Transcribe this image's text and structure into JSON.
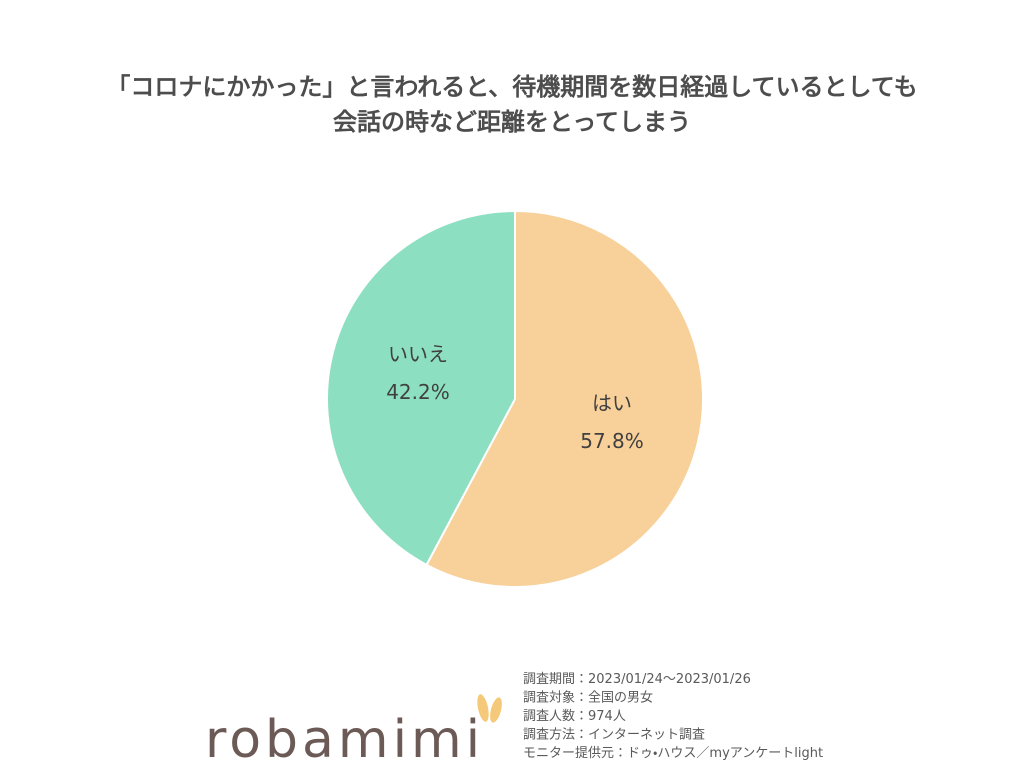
{
  "chart_data": {
    "type": "pie",
    "title": [
      "「コロナにかかった」と言われると、待機期間を数日経過しているとしても",
      "会話の時など距離をとってしまう"
    ],
    "categories": [
      "はい",
      "いいえ"
    ],
    "values": [
      57.8,
      42.2
    ],
    "value_labels": [
      "57.8%",
      "42.2%"
    ],
    "colors": [
      "#f8d09a",
      "#8ddfc2"
    ]
  },
  "footer": {
    "logo": "robamimi",
    "notes": [
      "調査期間：2023/01/24〜2023/01/26",
      "調査対象：全国の男女",
      "調査人数：974人",
      "調査方法：インターネット調査",
      "モニター提供元：ドゥ・ハウス／myアンケートlight"
    ]
  }
}
